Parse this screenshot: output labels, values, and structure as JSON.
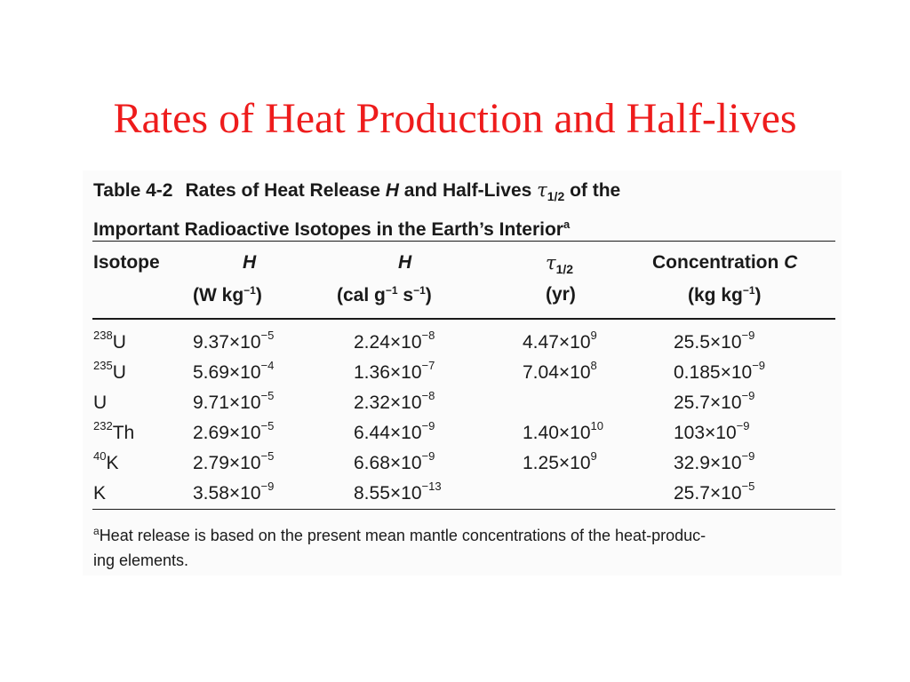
{
  "slide": {
    "title": "Rates of Heat Production and Half-lives"
  },
  "table": {
    "caption_number": "Table 4-2",
    "caption_line1_a": "Rates of Heat Release ",
    "caption_line1_H": "H",
    "caption_line1_b": " and Half-Lives ",
    "caption_tau": "τ",
    "caption_tau_sub": "1/2",
    "caption_line1_c": " of the",
    "caption_line2": "Important Radioactive Isotopes in the Earth’s Interior",
    "caption_note_mark": "a",
    "headers": {
      "isotope": "Isotope",
      "h_w": "H",
      "h_w_unit_a": "(W kg",
      "h_w_unit_exp": "−1",
      "h_w_unit_b": ")",
      "h_cal": "H",
      "h_cal_unit_a": "(cal g",
      "h_cal_unit_exp1": "−1",
      "h_cal_unit_mid": " s",
      "h_cal_unit_exp2": "−1",
      "h_cal_unit_b": ")",
      "tau": "τ",
      "tau_sub": "1/2",
      "tau_unit": "(yr)",
      "conc_a": "Concentration ",
      "conc_C": "C",
      "conc_unit_a": "(kg kg",
      "conc_unit_exp": "−1",
      "conc_unit_b": ")"
    },
    "rows": [
      {
        "iso_mass": "238",
        "iso_sym": "U",
        "hw_m": "9.37",
        "hw_e": "−5",
        "hc_m": "2.24",
        "hc_e": "−8",
        "t_m": "4.47",
        "t_e": "9",
        "c_m": "25.5",
        "c_e": "−9"
      },
      {
        "iso_mass": "235",
        "iso_sym": "U",
        "hw_m": "5.69",
        "hw_e": "−4",
        "hc_m": "1.36",
        "hc_e": "−7",
        "t_m": "7.04",
        "t_e": "8",
        "c_m": "0.185",
        "c_e": "−9"
      },
      {
        "iso_mass": "",
        "iso_sym": "U",
        "hw_m": "9.71",
        "hw_e": "−5",
        "hc_m": "2.32",
        "hc_e": "−8",
        "t_m": "",
        "t_e": "",
        "c_m": "25.7",
        "c_e": "−9"
      },
      {
        "iso_mass": "232",
        "iso_sym": "Th",
        "hw_m": "2.69",
        "hw_e": "−5",
        "hc_m": "6.44",
        "hc_e": "−9",
        "t_m": "1.40",
        "t_e": "10",
        "c_m": "103",
        "c_e": "−9"
      },
      {
        "iso_mass": "40",
        "iso_sym": "K",
        "hw_m": "2.79",
        "hw_e": "−5",
        "hc_m": "6.68",
        "hc_e": "−9",
        "t_m": "1.25",
        "t_e": "9",
        "c_m": "32.9",
        "c_e": "−9"
      },
      {
        "iso_mass": "",
        "iso_sym": "K",
        "hw_m": "3.58",
        "hw_e": "−9",
        "hc_m": "8.55",
        "hc_e": "−13",
        "t_m": "",
        "t_e": "",
        "c_m": "25.7",
        "c_e": "−5"
      }
    ],
    "times_ten": "×10",
    "footnote_mark": "a",
    "footnote_line1": "Heat release is based on the present mean mantle concentrations of the heat-produc-",
    "footnote_line2": "ing elements."
  }
}
